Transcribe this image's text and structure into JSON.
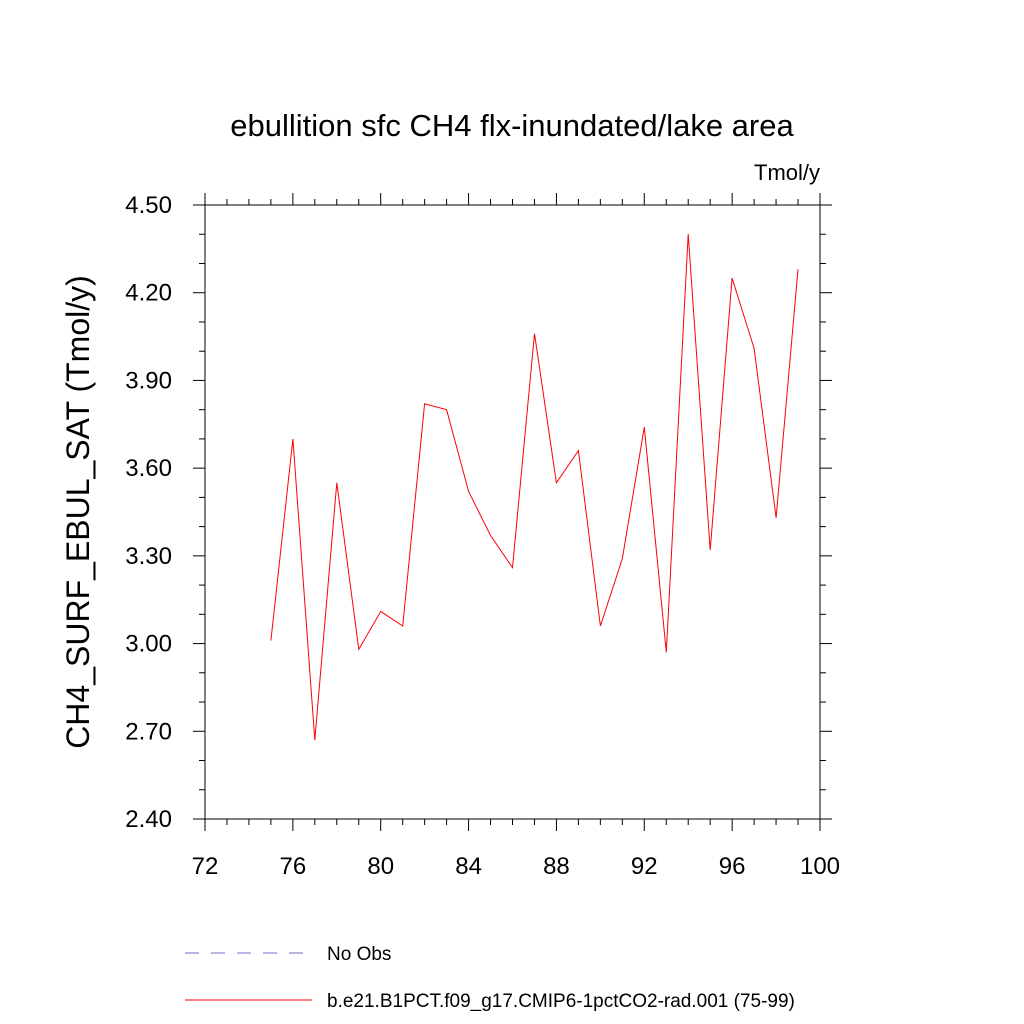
{
  "chart_data": {
    "type": "line",
    "title": "ebullition sfc CH4 flx-inundated/lake area",
    "units_label": "Tmol/y",
    "ylabel": "CH4_SURF_EBUL_SAT  (Tmol/y)",
    "xlabel": "",
    "xlim": [
      72,
      100
    ],
    "ylim": [
      2.4,
      4.5
    ],
    "x_ticks": [
      "72",
      "76",
      "80",
      "84",
      "88",
      "92",
      "96",
      "100"
    ],
    "y_ticks": [
      "2.40",
      "2.70",
      "3.00",
      "3.30",
      "3.60",
      "3.90",
      "4.20",
      "4.50"
    ],
    "grid": false,
    "legend_position": "bottom",
    "series": [
      {
        "name": "b.e21.B1PCT.f09_g17.CMIP6-1pctCO2-rad.001 (75-99)",
        "color": "#ff0000",
        "style": "solid",
        "x": [
          75,
          76,
          77,
          78,
          79,
          80,
          81,
          82,
          83,
          84,
          85,
          86,
          87,
          88,
          89,
          90,
          91,
          92,
          93,
          94,
          95,
          96,
          97,
          98,
          99
        ],
        "values": [
          3.01,
          3.7,
          2.67,
          3.55,
          2.98,
          3.11,
          3.06,
          3.82,
          3.8,
          3.52,
          3.37,
          3.26,
          4.06,
          3.55,
          3.66,
          3.06,
          3.29,
          3.74,
          2.97,
          4.4,
          3.32,
          4.25,
          4.01,
          3.43,
          4.28
        ]
      }
    ],
    "legend": [
      {
        "label": "No Obs",
        "color": "#7070cc",
        "style": "dashed"
      },
      {
        "label": "b.e21.B1PCT.f09_g17.CMIP6-1pctCO2-rad.001 (75-99)",
        "color": "#ff0000",
        "style": "solid"
      }
    ]
  }
}
